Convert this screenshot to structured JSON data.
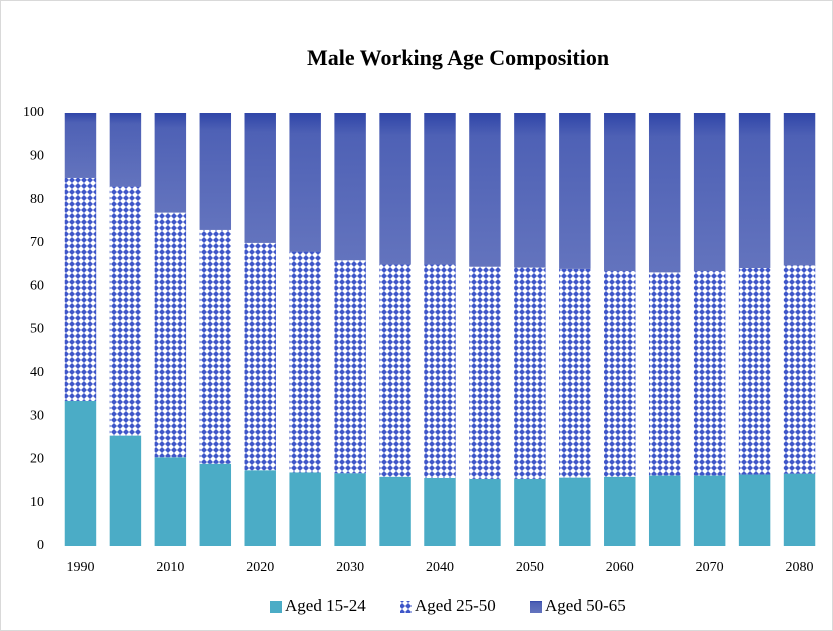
{
  "chart_data": {
    "type": "stacked_bar",
    "title": "Male Working Age Composition",
    "categories": [
      "1990",
      null,
      "2010",
      null,
      "2020",
      null,
      "2030",
      null,
      "2040",
      null,
      "2050",
      null,
      "2060",
      null,
      "2070",
      null,
      "2080"
    ],
    "series": [
      {
        "name": "Aged 15-24",
        "color": "#4bacc6",
        "fill_style": "solid",
        "values": [
          33.5,
          25.5,
          20.5,
          19,
          17.5,
          17,
          16.8,
          16,
          15.7,
          15.5,
          15.5,
          15.8,
          16,
          16.3,
          16.3,
          16.5,
          16.7
        ]
      },
      {
        "name": "Aged 25-50",
        "color": "#3f57c9",
        "fill_style": "crosshatch",
        "values": [
          51.5,
          57.5,
          56.5,
          54,
          52.5,
          51,
          49.2,
          49,
          49.3,
          49,
          48.8,
          48.2,
          47.5,
          46.9,
          47.2,
          47.7,
          48.1
        ]
      },
      {
        "name": "Aged 50-65",
        "color": "#2f45a8",
        "fill_style": "gradient",
        "values": [
          15,
          17,
          23,
          27,
          30,
          32,
          34,
          35,
          35,
          35.5,
          35.7,
          36,
          36.5,
          36.8,
          36.5,
          35.8,
          35.2
        ]
      }
    ],
    "ylim": [
      0,
      100
    ],
    "yticks": [
      0,
      10,
      20,
      30,
      40,
      50,
      60,
      70,
      80,
      90,
      100
    ],
    "grid": false,
    "legend": "bottom"
  }
}
